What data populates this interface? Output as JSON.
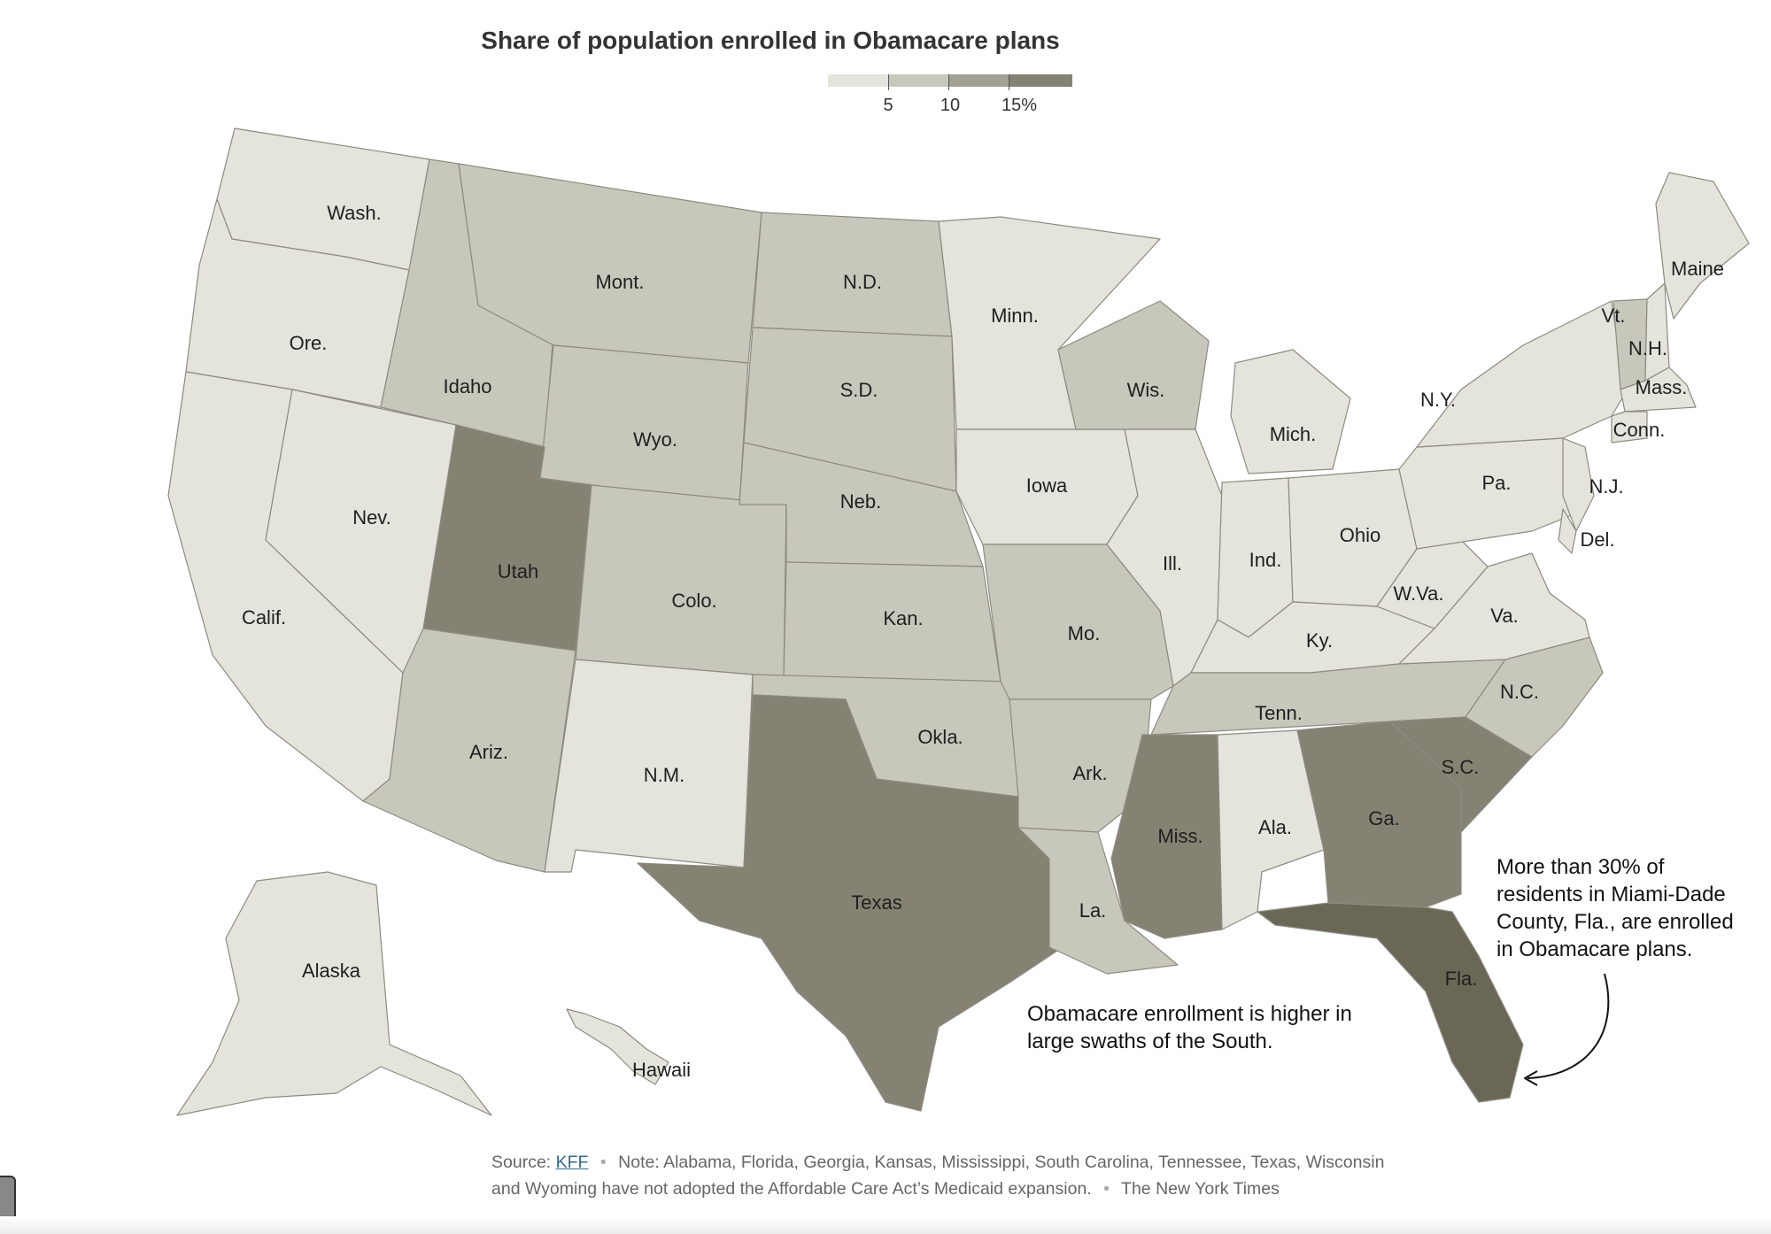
{
  "title": "Share of population enrolled in Obamacare plans",
  "legend": {
    "ticks": [
      "5",
      "10",
      "15%"
    ],
    "bins": [
      {
        "color": "#e4e3dc"
      },
      {
        "color": "#c8c7bc"
      },
      {
        "color": "#a3a193"
      },
      {
        "color": "#858273"
      },
      {
        "color": "#6b6757"
      }
    ]
  },
  "colors": {
    "lowest": "#e4e3dc",
    "low": "#c8c7bc",
    "mid": "#a3a193",
    "high": "#858273",
    "highest": "#6b6757",
    "border": "#8d8b80"
  },
  "states": [
    {
      "name": "Wash.",
      "fill": "lowest"
    },
    {
      "name": "Ore.",
      "fill": "lowest"
    },
    {
      "name": "Calif.",
      "fill": "lowest"
    },
    {
      "name": "Nev.",
      "fill": "lowest"
    },
    {
      "name": "Idaho",
      "fill": "low"
    },
    {
      "name": "Mont.",
      "fill": "low"
    },
    {
      "name": "Wyo.",
      "fill": "low"
    },
    {
      "name": "Utah",
      "fill": "high"
    },
    {
      "name": "Colo.",
      "fill": "low"
    },
    {
      "name": "Ariz.",
      "fill": "low"
    },
    {
      "name": "N.M.",
      "fill": "lowest"
    },
    {
      "name": "N.D.",
      "fill": "low"
    },
    {
      "name": "S.D.",
      "fill": "low"
    },
    {
      "name": "Neb.",
      "fill": "low"
    },
    {
      "name": "Kan.",
      "fill": "low"
    },
    {
      "name": "Okla.",
      "fill": "low"
    },
    {
      "name": "Texas",
      "fill": "high"
    },
    {
      "name": "Minn.",
      "fill": "lowest"
    },
    {
      "name": "Iowa",
      "fill": "lowest"
    },
    {
      "name": "Mo.",
      "fill": "low"
    },
    {
      "name": "Ark.",
      "fill": "low"
    },
    {
      "name": "La.",
      "fill": "low"
    },
    {
      "name": "Wis.",
      "fill": "low"
    },
    {
      "name": "Ill.",
      "fill": "lowest"
    },
    {
      "name": "Mich.",
      "fill": "lowest"
    },
    {
      "name": "Ind.",
      "fill": "lowest"
    },
    {
      "name": "Ohio",
      "fill": "lowest"
    },
    {
      "name": "Ky.",
      "fill": "lowest"
    },
    {
      "name": "Tenn.",
      "fill": "low"
    },
    {
      "name": "Miss.",
      "fill": "high"
    },
    {
      "name": "Ala.",
      "fill": "lowest"
    },
    {
      "name": "Ga.",
      "fill": "high"
    },
    {
      "name": "Fla.",
      "fill": "highest"
    },
    {
      "name": "S.C.",
      "fill": "high"
    },
    {
      "name": "N.C.",
      "fill": "low"
    },
    {
      "name": "Va.",
      "fill": "lowest"
    },
    {
      "name": "W.Va.",
      "fill": "lowest"
    },
    {
      "name": "Pa.",
      "fill": "lowest"
    },
    {
      "name": "N.Y.",
      "fill": "lowest"
    },
    {
      "name": "Vt.",
      "fill": "low"
    },
    {
      "name": "N.H.",
      "fill": "lowest"
    },
    {
      "name": "Maine",
      "fill": "lowest"
    },
    {
      "name": "Mass.",
      "fill": "lowest"
    },
    {
      "name": "Conn.",
      "fill": "lowest"
    },
    {
      "name": "N.J.",
      "fill": "lowest"
    },
    {
      "name": "Del.",
      "fill": "lowest"
    },
    {
      "name": "Alaska",
      "fill": "lowest"
    },
    {
      "name": "Hawaii",
      "fill": "lowest"
    }
  ],
  "annotations": {
    "south": "Obamacare enrollment is higher in large swaths of the South.",
    "miami": "More than 30% of residents in Miami-Dade County, Fla., are enrolled in Obamacare plans."
  },
  "footer": {
    "source_prefix": "Source:",
    "source_link": "KFF",
    "note": "Note: Alabama, Florida, Georgia, Kansas, Mississippi, South Carolina, Tennessee, Texas, Wisconsin and Wyoming have not adopted the Affordable Care Act’s Medicaid expansion.",
    "credit": "The New York Times"
  }
}
